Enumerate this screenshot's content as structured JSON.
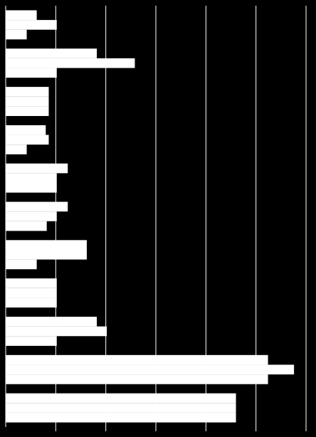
{
  "chart_data": {
    "type": "bar",
    "orientation": "horizontal",
    "title": "",
    "xlabel": "",
    "ylabel": "",
    "xlim": [
      0,
      30
    ],
    "grid": true,
    "legend": "none",
    "categories": [
      "",
      "",
      "",
      "",
      "",
      "",
      "",
      "",
      "",
      "",
      ""
    ],
    "series": [
      {
        "values": [
          3.1,
          9.1,
          4.3,
          4.0,
          6.2,
          6.2,
          8.1,
          5.1,
          9.1,
          26.2,
          23.0
        ]
      },
      {
        "values": [
          5.1,
          12.9,
          4.3,
          4.3,
          5.1,
          5.1,
          8.1,
          5.1,
          10.1,
          28.8,
          23.0
        ]
      },
      {
        "values": [
          2.1,
          5.1,
          4.3,
          2.1,
          5.1,
          4.1,
          3.1,
          5.1,
          5.1,
          26.2,
          23.0
        ]
      }
    ],
    "colors": {
      "background": "#000000",
      "bar": "#ffffff",
      "grid": "#ffffff"
    }
  }
}
